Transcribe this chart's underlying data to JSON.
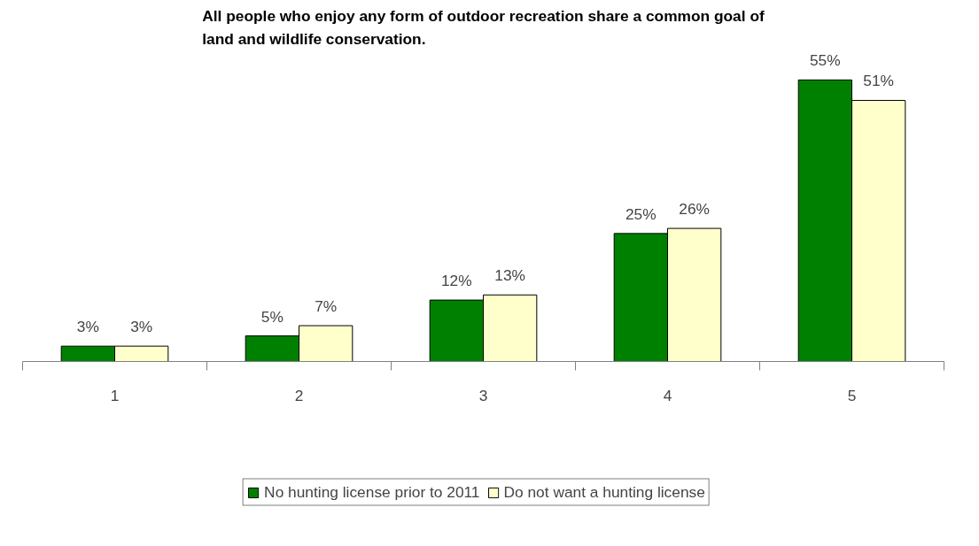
{
  "chart_data": {
    "type": "bar",
    "title": "All people who enjoy any form of outdoor recreation share a common goal of land and wildlife conservation.",
    "categories": [
      "1",
      "2",
      "3",
      "4",
      "5"
    ],
    "series": [
      {
        "name": "No hunting license prior to 2011",
        "color": "#008000",
        "values": [
          3,
          5,
          12,
          25,
          55
        ],
        "value_labels": [
          "3%",
          "5%",
          "12%",
          "25%",
          "55%"
        ]
      },
      {
        "name": "Do not want a hunting license",
        "color": "#ffffcc",
        "values": [
          3,
          7,
          13,
          26,
          51
        ],
        "value_labels": [
          "3%",
          "7%",
          "13%",
          "26%",
          "51%"
        ]
      }
    ],
    "legend": "bottom"
  }
}
